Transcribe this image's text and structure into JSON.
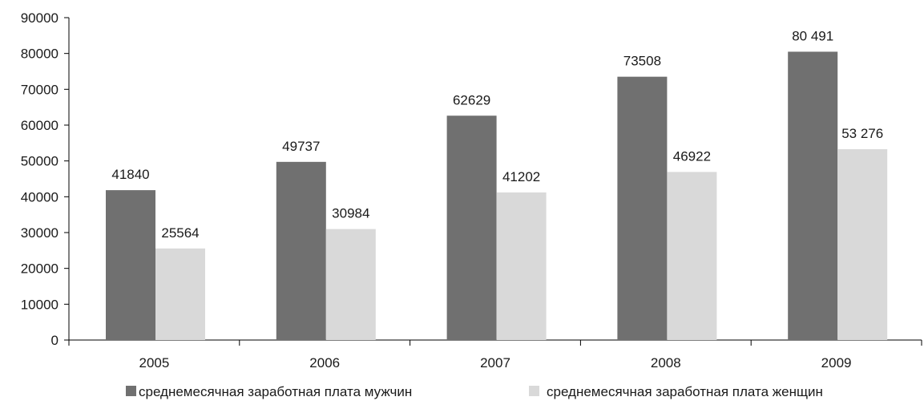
{
  "chart_data": {
    "type": "bar",
    "title": "",
    "xlabel": "",
    "ylabel": "",
    "categories": [
      "2005",
      "2006",
      "2007",
      "2008",
      "2009"
    ],
    "ylim": [
      0,
      90000
    ],
    "yticks": [
      0,
      10000,
      20000,
      30000,
      40000,
      50000,
      60000,
      70000,
      80000,
      90000
    ],
    "ytick_labels": [
      "0",
      "10000",
      "20000",
      "30000",
      "40000",
      "50000",
      "60000",
      "70000",
      "80000",
      "90000"
    ],
    "grid": false,
    "legend_position": "bottom",
    "series": [
      {
        "name": "среднемесячная заработная плата мужчин",
        "color": "#707070",
        "values": [
          41840,
          49737,
          62629,
          73508,
          80491
        ],
        "labels": [
          "41840",
          "49737",
          "62629",
          "73508",
          "80 491"
        ]
      },
      {
        "name": "среднемесячная заработная плата женщин",
        "color": "#d9d9d9",
        "values": [
          25564,
          30984,
          41202,
          46922,
          53276
        ],
        "labels": [
          "25564",
          "30984",
          "41202",
          "46922",
          "53 276"
        ]
      }
    ]
  }
}
